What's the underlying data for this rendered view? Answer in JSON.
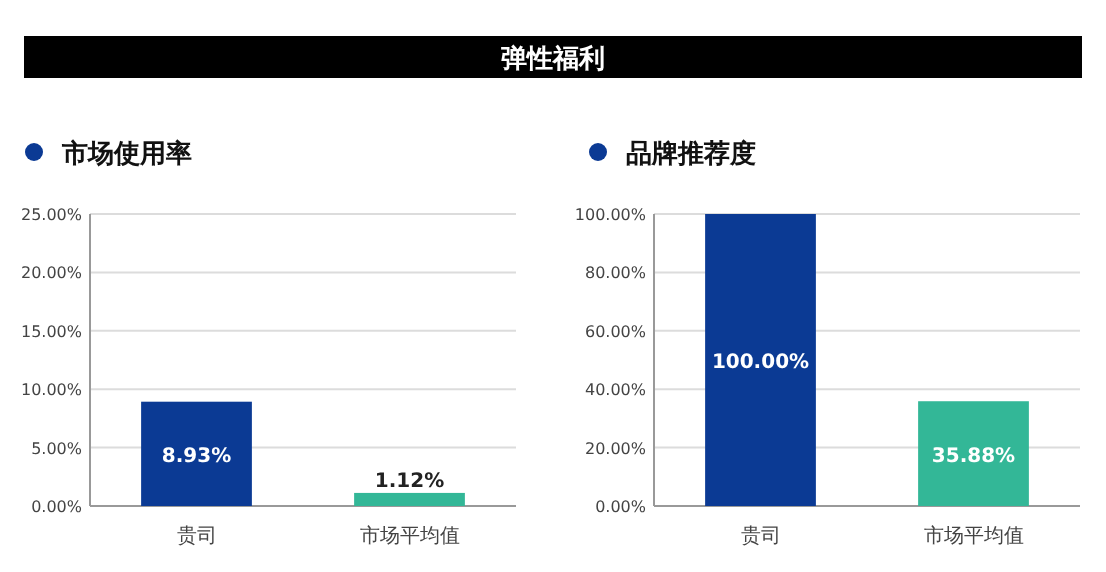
{
  "chart_data": [
    {
      "type": "other",
      "title": "弹性福利"
    },
    {
      "type": "bar",
      "title": "市场使用率",
      "categories": [
        "贵司",
        "市场平均值"
      ],
      "values": [
        8.93,
        1.12
      ],
      "colors": [
        "#0b3a94",
        "#33b797"
      ],
      "value_labels": [
        "8.93%",
        "1.12%"
      ],
      "ylim": [
        0,
        25
      ],
      "yticks": [
        {
          "value": 0,
          "label": "0.00%"
        },
        {
          "value": 5,
          "label": "5.00%"
        },
        {
          "value": 10,
          "label": "10.00%"
        },
        {
          "value": 15,
          "label": "15.00%"
        },
        {
          "value": 20,
          "label": "20.00%"
        },
        {
          "value": 25,
          "label": "25.00%"
        }
      ],
      "grid": "y"
    },
    {
      "type": "bar",
      "title": "品牌推荐度",
      "categories": [
        "贵司",
        "市场平均值"
      ],
      "values": [
        100,
        35.88
      ],
      "colors": [
        "#0b3a94",
        "#33b797"
      ],
      "value_labels": [
        "100.00%",
        "35.88%"
      ],
      "ylim": [
        0,
        100
      ],
      "yticks": [
        {
          "value": 0,
          "label": "0.00%"
        },
        {
          "value": 20,
          "label": "20.00%"
        },
        {
          "value": 40,
          "label": "40.00%"
        },
        {
          "value": 60,
          "label": "60.00%"
        },
        {
          "value": 80,
          "label": "80.00%"
        },
        {
          "value": 100,
          "label": "100.00%"
        }
      ],
      "grid": "y"
    }
  ]
}
